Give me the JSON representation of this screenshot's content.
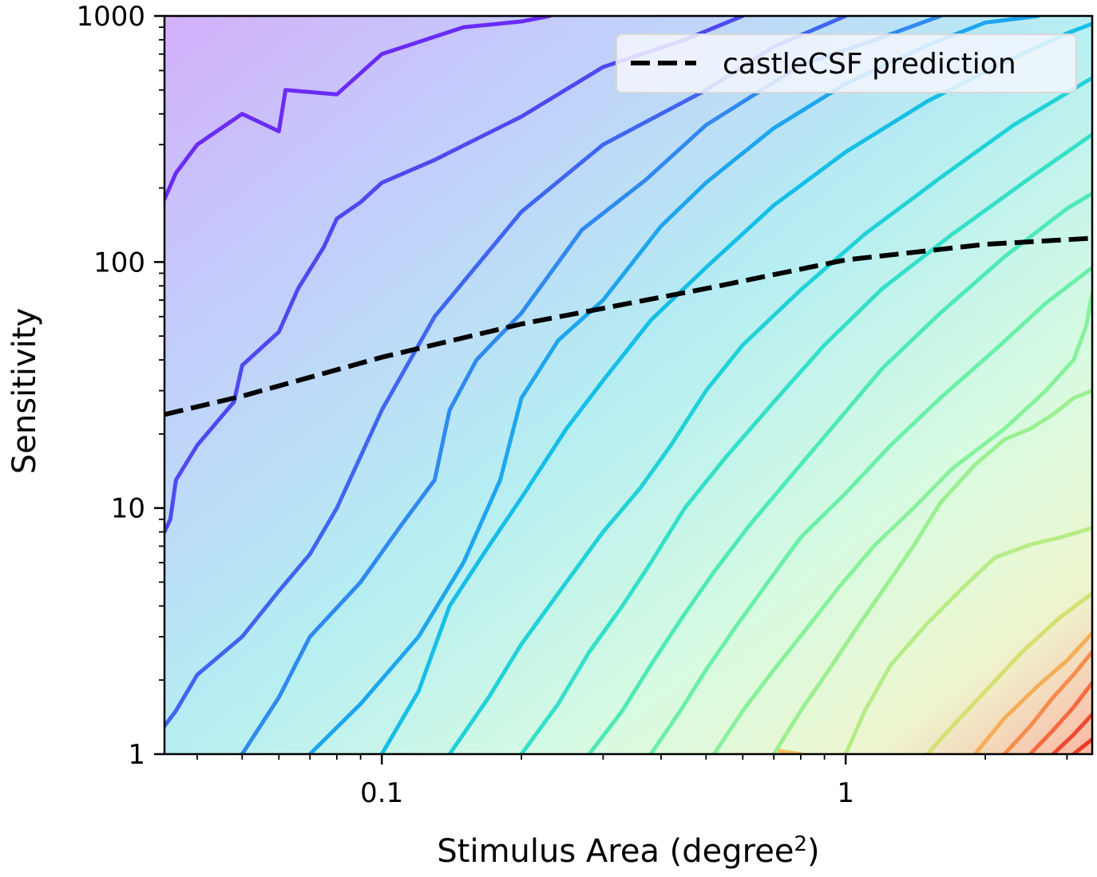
{
  "chart_data": {
    "type": "line",
    "title": "",
    "xlabel": "Stimulus Area (degree",
    "xlabel_sup": "2",
    "xlabel_close": ")",
    "ylabel": "Sensitivity",
    "x_scale": "log",
    "y_scale": "log",
    "xlim": [
      0.034,
      3.4
    ],
    "ylim": [
      1,
      1000
    ],
    "x_ticks": [
      {
        "value": 0.1,
        "label": "0.1"
      },
      {
        "value": 1,
        "label": "1"
      }
    ],
    "y_ticks": [
      {
        "value": 1,
        "label": "1"
      },
      {
        "value": 10,
        "label": "10"
      },
      {
        "value": 100,
        "label": "100"
      },
      {
        "value": 1000,
        "label": "1000"
      }
    ],
    "legend": {
      "position": "top-right",
      "entries": [
        {
          "label": "castleCSF prediction",
          "style": "dashed",
          "color": "#000000"
        }
      ]
    },
    "prediction": {
      "name": "castleCSF prediction",
      "x": [
        0.034,
        0.05,
        0.1,
        0.2,
        0.5,
        1,
        2,
        3.4
      ],
      "y": [
        24,
        28.5,
        41,
        56,
        78,
        102,
        118,
        125
      ]
    },
    "contours": [
      {
        "color": "#6a2cf5",
        "points": [
          [
            0.034,
            180
          ],
          [
            0.036,
            230
          ],
          [
            0.04,
            300
          ],
          [
            0.05,
            400
          ],
          [
            0.06,
            340
          ],
          [
            0.062,
            500
          ],
          [
            0.08,
            480
          ],
          [
            0.1,
            700
          ],
          [
            0.15,
            900
          ],
          [
            0.2,
            950
          ],
          [
            0.23,
            1000
          ]
        ]
      },
      {
        "color": "#5048f0",
        "points": [
          [
            0.034,
            8
          ],
          [
            0.035,
            9
          ],
          [
            0.036,
            13
          ],
          [
            0.04,
            18
          ],
          [
            0.048,
            27
          ],
          [
            0.05,
            38
          ],
          [
            0.06,
            52
          ],
          [
            0.066,
            78
          ],
          [
            0.075,
            115
          ],
          [
            0.08,
            150
          ],
          [
            0.09,
            175
          ],
          [
            0.1,
            210
          ],
          [
            0.13,
            260
          ],
          [
            0.2,
            390
          ],
          [
            0.3,
            620
          ],
          [
            0.45,
            800
          ],
          [
            0.6,
            1000
          ]
        ]
      },
      {
        "color": "#3f66f0",
        "points": [
          [
            0.034,
            1.3
          ],
          [
            0.036,
            1.5
          ],
          [
            0.04,
            2.1
          ],
          [
            0.05,
            3
          ],
          [
            0.06,
            4.6
          ],
          [
            0.07,
            6.5
          ],
          [
            0.08,
            10
          ],
          [
            0.1,
            25
          ],
          [
            0.13,
            60
          ],
          [
            0.2,
            160
          ],
          [
            0.3,
            300
          ],
          [
            0.5,
            500
          ],
          [
            0.7,
            750
          ],
          [
            1.0,
            1000
          ]
        ]
      },
      {
        "color": "#2f8af0",
        "points": [
          [
            0.05,
            1
          ],
          [
            0.06,
            1.7
          ],
          [
            0.07,
            3
          ],
          [
            0.09,
            5
          ],
          [
            0.11,
            8.5
          ],
          [
            0.13,
            13
          ],
          [
            0.14,
            25
          ],
          [
            0.16,
            40
          ],
          [
            0.2,
            62
          ],
          [
            0.27,
            135
          ],
          [
            0.37,
            215
          ],
          [
            0.5,
            360
          ],
          [
            0.8,
            630
          ],
          [
            1.2,
            820
          ],
          [
            1.6,
            1000
          ]
        ]
      },
      {
        "color": "#1ea6ee",
        "points": [
          [
            0.07,
            1
          ],
          [
            0.09,
            1.6
          ],
          [
            0.12,
            3
          ],
          [
            0.15,
            6
          ],
          [
            0.18,
            13
          ],
          [
            0.2,
            28
          ],
          [
            0.24,
            48
          ],
          [
            0.3,
            70
          ],
          [
            0.4,
            140
          ],
          [
            0.5,
            210
          ],
          [
            0.7,
            350
          ],
          [
            1.0,
            530
          ],
          [
            1.5,
            760
          ],
          [
            2.0,
            940
          ],
          [
            2.6,
            1000
          ]
        ]
      },
      {
        "color": "#15bfe6",
        "points": [
          [
            0.1,
            1
          ],
          [
            0.12,
            1.8
          ],
          [
            0.14,
            4
          ],
          [
            0.17,
            7
          ],
          [
            0.2,
            11
          ],
          [
            0.25,
            21
          ],
          [
            0.3,
            33
          ],
          [
            0.38,
            58
          ],
          [
            0.5,
            95
          ],
          [
            0.7,
            170
          ],
          [
            1.0,
            280
          ],
          [
            1.5,
            450
          ],
          [
            2.2,
            650
          ],
          [
            3.0,
            850
          ],
          [
            3.4,
            930
          ]
        ]
      },
      {
        "color": "#20d2d8",
        "points": [
          [
            0.14,
            1
          ],
          [
            0.17,
            1.7
          ],
          [
            0.2,
            2.8
          ],
          [
            0.25,
            5
          ],
          [
            0.3,
            8
          ],
          [
            0.36,
            12
          ],
          [
            0.42,
            18
          ],
          [
            0.5,
            30
          ],
          [
            0.6,
            46
          ],
          [
            0.8,
            77
          ],
          [
            1.1,
            130
          ],
          [
            1.6,
            220
          ],
          [
            2.3,
            360
          ],
          [
            3.4,
            560
          ]
        ]
      },
      {
        "color": "#33e0c8",
        "points": [
          [
            0.2,
            1
          ],
          [
            0.24,
            1.6
          ],
          [
            0.28,
            2.6
          ],
          [
            0.33,
            4
          ],
          [
            0.38,
            6
          ],
          [
            0.45,
            10
          ],
          [
            0.55,
            16
          ],
          [
            0.7,
            27
          ],
          [
            0.9,
            46
          ],
          [
            1.2,
            78
          ],
          [
            1.7,
            130
          ],
          [
            2.5,
            220
          ],
          [
            3.4,
            330
          ]
        ]
      },
      {
        "color": "#4eeab8",
        "points": [
          [
            0.28,
            1
          ],
          [
            0.33,
            1.5
          ],
          [
            0.38,
            2.3
          ],
          [
            0.44,
            3.5
          ],
          [
            0.52,
            5.5
          ],
          [
            0.62,
            8.5
          ],
          [
            0.75,
            13
          ],
          [
            0.95,
            22
          ],
          [
            1.2,
            37
          ],
          [
            1.6,
            62
          ],
          [
            2.2,
            105
          ],
          [
            3.0,
            165
          ],
          [
            3.4,
            190
          ]
        ]
      },
      {
        "color": "#6af0a8",
        "points": [
          [
            0.38,
            1
          ],
          [
            0.44,
            1.5
          ],
          [
            0.5,
            2.2
          ],
          [
            0.58,
            3.3
          ],
          [
            0.68,
            5
          ],
          [
            0.8,
            7.6
          ],
          [
            1.0,
            11.5
          ],
          [
            1.25,
            18
          ],
          [
            1.6,
            28
          ],
          [
            2.1,
            44
          ],
          [
            2.7,
            68
          ],
          [
            3.4,
            95
          ]
        ]
      },
      {
        "color": "#86f29c",
        "points": [
          [
            0.52,
            1
          ],
          [
            0.6,
            1.5
          ],
          [
            0.7,
            2.2
          ],
          [
            0.82,
            3.2
          ],
          [
            0.97,
            4.8
          ],
          [
            1.15,
            7
          ],
          [
            1.4,
            10
          ],
          [
            1.7,
            14.5
          ],
          [
            2.2,
            21
          ],
          [
            2.7,
            30
          ],
          [
            3.1,
            40
          ],
          [
            3.3,
            55
          ],
          [
            3.4,
            75
          ]
        ]
      },
      {
        "color": "#9af090",
        "points": [
          [
            0.7,
            1
          ],
          [
            0.8,
            1.5
          ],
          [
            0.92,
            2.2
          ],
          [
            1.05,
            3.2
          ],
          [
            1.2,
            4.6
          ],
          [
            1.4,
            7
          ],
          [
            1.6,
            10.5
          ],
          [
            1.9,
            15
          ],
          [
            2.2,
            19
          ],
          [
            2.5,
            21
          ],
          [
            2.8,
            24
          ],
          [
            3.1,
            28
          ],
          [
            3.4,
            30
          ]
        ]
      },
      {
        "color": "#b6ec86",
        "points": [
          [
            1.0,
            1
          ],
          [
            1.1,
            1.5
          ],
          [
            1.25,
            2.3
          ],
          [
            1.5,
            3.4
          ],
          [
            1.8,
            4.8
          ],
          [
            2.1,
            6.3
          ],
          [
            2.5,
            7.1
          ],
          [
            2.9,
            7.6
          ],
          [
            3.4,
            8.3
          ]
        ]
      },
      {
        "color": "#d4e070",
        "points": [
          [
            1.5,
            1
          ],
          [
            1.7,
            1.3
          ],
          [
            2.0,
            1.8
          ],
          [
            2.4,
            2.6
          ],
          [
            2.9,
            3.6
          ],
          [
            3.4,
            4.5
          ]
        ]
      },
      {
        "color": "#f0c060",
        "points": [
          [
            0.72,
            1.03
          ],
          [
            0.8,
            1.0
          ]
        ]
      },
      {
        "color": "#f5ad58",
        "points": [
          [
            1.9,
            1
          ],
          [
            2.2,
            1.4
          ],
          [
            2.6,
            1.9
          ],
          [
            3.0,
            2.4
          ],
          [
            3.4,
            3.1
          ]
        ]
      },
      {
        "color": "#f78c4c",
        "points": [
          [
            2.2,
            1
          ],
          [
            2.5,
            1.3
          ],
          [
            2.8,
            1.7
          ],
          [
            3.1,
            2.1
          ],
          [
            3.4,
            2.6
          ]
        ]
      },
      {
        "color": "#f66a40",
        "points": [
          [
            2.5,
            1
          ],
          [
            2.8,
            1.25
          ],
          [
            3.1,
            1.55
          ],
          [
            3.4,
            1.95
          ]
        ]
      },
      {
        "color": "#f04830",
        "points": [
          [
            2.8,
            1
          ],
          [
            3.1,
            1.2
          ],
          [
            3.4,
            1.45
          ]
        ]
      },
      {
        "color": "#ec3a26",
        "points": [
          [
            3.1,
            1
          ],
          [
            3.4,
            1.15
          ]
        ]
      }
    ]
  }
}
